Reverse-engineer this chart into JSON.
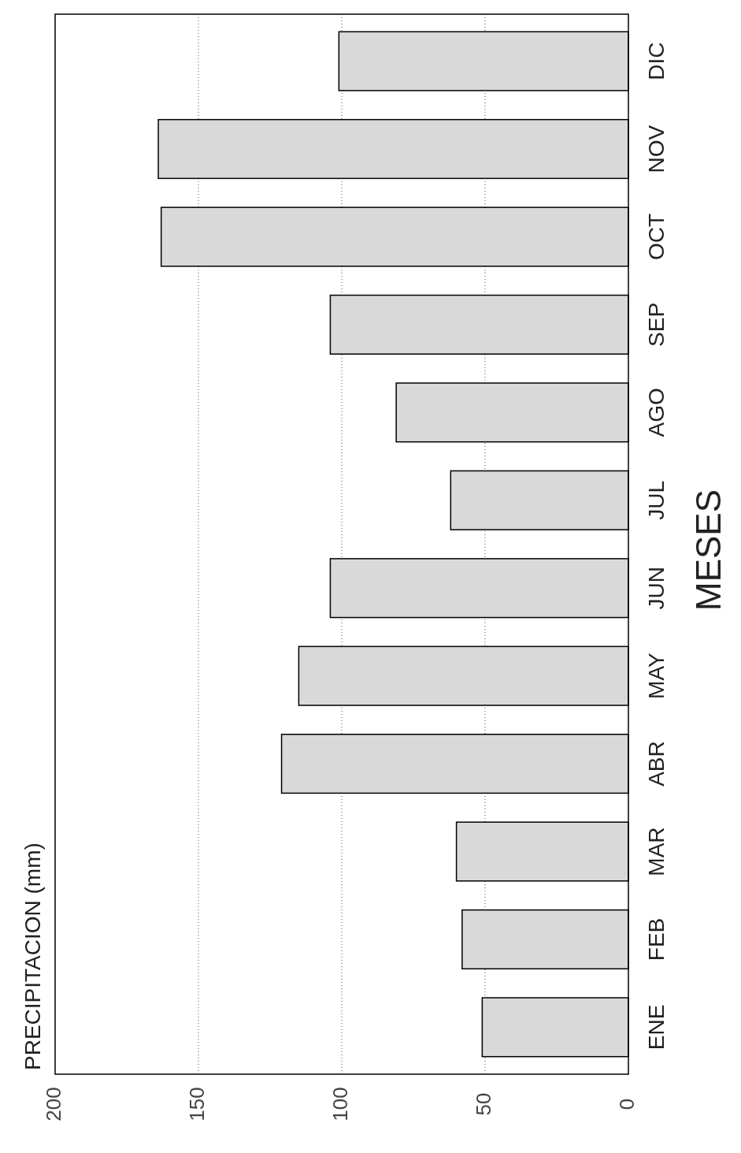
{
  "chart_data": {
    "type": "bar",
    "orientation": "horizontal",
    "annotations": [
      "PRECIPITACION (mm)"
    ],
    "ylabel": "MESES",
    "categories": [
      "DIC",
      "NOV",
      "OCT",
      "SEP",
      "AGO",
      "JUL",
      "JUN",
      "MAY",
      "ABR",
      "MAR",
      "FEB",
      "ENE"
    ],
    "values": [
      101,
      164,
      163,
      104,
      81,
      62,
      104,
      115,
      121,
      60,
      58,
      51
    ],
    "color": "#d9d9d9",
    "xlim": [
      200,
      0
    ],
    "xticks": [
      200,
      150,
      100,
      50,
      0
    ],
    "grid": "x"
  }
}
